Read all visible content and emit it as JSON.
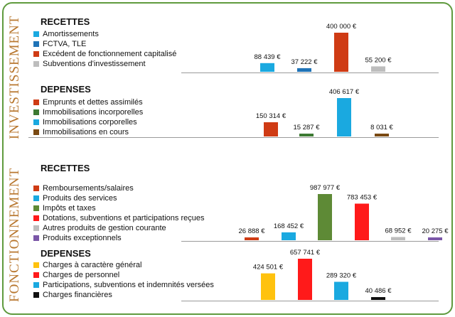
{
  "sections": {
    "investissement": {
      "title": "INVESTISSEMENT"
    },
    "fonctionnement": {
      "title": "FONCTIONNEMENT"
    }
  },
  "chart_data": [
    {
      "type": "bar",
      "heading": "RECETTES",
      "legend": [
        {
          "label": "Amortissements",
          "color": "#1aa9e0"
        },
        {
          "label": "FCTVA, TLE",
          "color": "#1f73b7"
        },
        {
          "label": "Excédent de fonctionnement capitalisé",
          "color": "#cf3b14"
        },
        {
          "label": "Subventions d'investissement",
          "color": "#bdbdbd"
        }
      ],
      "categories": [
        "Amortissements",
        "FCTVA, TLE",
        "Excédent de fonctionnement capitalisé",
        "Subventions d'investissement"
      ],
      "values": [
        88439,
        37222,
        400000,
        55200
      ],
      "labels": [
        "88 439 €",
        "37 222 €",
        "400 000 €",
        "55 200 €"
      ],
      "colors": [
        "#1aa9e0",
        "#1f73b7",
        "#cf3b14",
        "#bdbdbd"
      ]
    },
    {
      "type": "bar",
      "heading": "DEPENSES",
      "legend": [
        {
          "label": "Emprunts et dettes assimilés",
          "color": "#cf3b14"
        },
        {
          "label": "Immobilisations incorporelles",
          "color": "#3d7a33"
        },
        {
          "label": "Immobilisations corporelles",
          "color": "#1aa9e0"
        },
        {
          "label": "Immobilisations en cours",
          "color": "#7a4a12"
        }
      ],
      "categories": [
        "Emprunts et dettes assimilés",
        "Immobilisations incorporelles",
        "Immobilisations corporelles",
        "Immobilisations en cours"
      ],
      "values": [
        150314,
        15287,
        406617,
        8031
      ],
      "labels": [
        "150 314 €",
        "15 287  €",
        "406 617 €",
        "8 031 €"
      ],
      "colors": [
        "#cf3b14",
        "#3d7a33",
        "#1aa9e0",
        "#7a4a12"
      ]
    },
    {
      "type": "bar",
      "heading": "RECETTES",
      "legend": [
        {
          "label": "Remboursements/salaires",
          "color": "#cf3b14"
        },
        {
          "label": "Produits des services",
          "color": "#1aa9e0"
        },
        {
          "label": "Impôts et taxes",
          "color": "#5e8a36"
        },
        {
          "label": "Dotations, subventions et participations reçues",
          "color": "#ff1a1a"
        },
        {
          "label": "Autres produits de gestion courante",
          "color": "#bdbdbd"
        },
        {
          "label": "Produits exceptionnels",
          "color": "#7b57a8"
        }
      ],
      "categories": [
        "Remboursements/salaires",
        "Produits des services",
        "Impôts et taxes",
        "Dotations, subventions et participations reçues",
        "Autres produits de gestion courante",
        "Produits exceptionnels"
      ],
      "values": [
        26888,
        168452,
        987977,
        783453,
        68952,
        20275
      ],
      "labels": [
        "26 888 €",
        "168 452 €",
        "987 977 €",
        "783 453 €",
        "68 952 €",
        "20 275 €"
      ],
      "colors": [
        "#cf3b14",
        "#1aa9e0",
        "#5e8a36",
        "#ff1a1a",
        "#bdbdbd",
        "#7b57a8"
      ]
    },
    {
      "type": "bar",
      "heading": "DEPENSES",
      "legend": [
        {
          "label": "Charges à caractère général",
          "color": "#ffc20e"
        },
        {
          "label": "Charges de personnel",
          "color": "#ff1a1a"
        },
        {
          "label": "Participations, subventions et indemnités versées",
          "color": "#1aa9e0"
        },
        {
          "label": "Charges financières",
          "color": "#111111"
        }
      ],
      "categories": [
        "Charges à caractère général",
        "Charges de personnel",
        "Participations, subventions et indemnités versées",
        "Charges financières"
      ],
      "values": [
        424501,
        657741,
        289320,
        40486
      ],
      "labels": [
        "424 501 €",
        "657 741 €",
        "289 320 €",
        "40 486 €"
      ],
      "colors": [
        "#ffc20e",
        "#ff1a1a",
        "#1aa9e0",
        "#111111"
      ]
    }
  ]
}
